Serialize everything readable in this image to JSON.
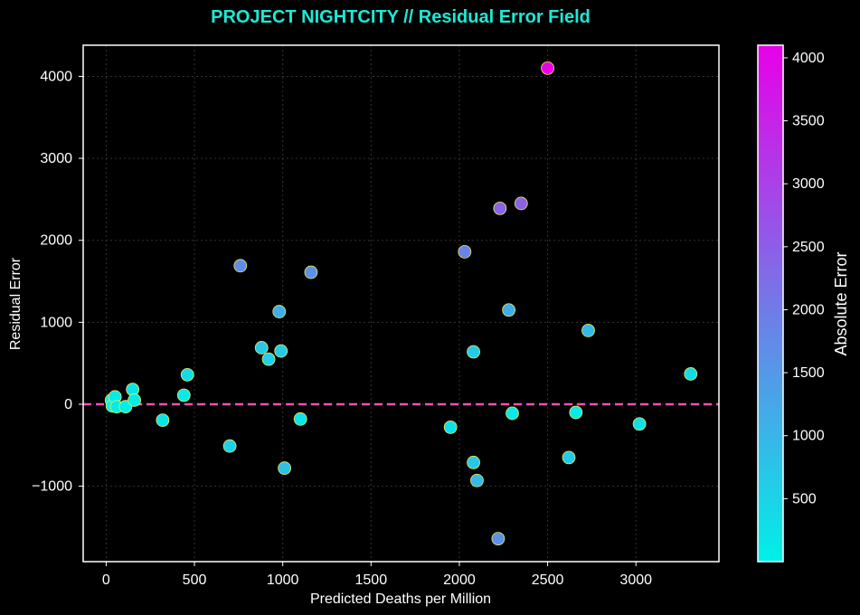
{
  "chart_data": {
    "type": "scatter",
    "title": "PROJECT NIGHTCITY // Residual Error Field",
    "xlabel": "Predicted Deaths per Million",
    "ylabel": "Residual Error",
    "xlim": [
      -130,
      3470
    ],
    "ylim": [
      -1920,
      4380
    ],
    "xticks": [
      0,
      500,
      1000,
      1500,
      2000,
      2500,
      3000
    ],
    "yticks": [
      -1000,
      0,
      1000,
      2000,
      3000,
      4000
    ],
    "ytick_labels": [
      "−1000",
      "0",
      "1000",
      "2000",
      "3000",
      "4000"
    ],
    "grid": true,
    "zero_line": {
      "y": 0,
      "color": "#ff4fb0",
      "style": "dashed"
    },
    "colorbar": {
      "label": "Absolute Error",
      "range": [
        0,
        4100
      ],
      "ticks": [
        500,
        1000,
        1500,
        2000,
        2500,
        3000,
        3500,
        4000
      ],
      "colormap": [
        "#00f0e8",
        "#e800e8"
      ]
    },
    "points": [
      {
        "x": 30,
        "y": 50
      },
      {
        "x": 35,
        "y": -20
      },
      {
        "x": 50,
        "y": 90
      },
      {
        "x": 60,
        "y": -30
      },
      {
        "x": 110,
        "y": -30
      },
      {
        "x": 150,
        "y": 180
      },
      {
        "x": 160,
        "y": 50
      },
      {
        "x": 320,
        "y": -195
      },
      {
        "x": 440,
        "y": 110
      },
      {
        "x": 460,
        "y": 360
      },
      {
        "x": 700,
        "y": -510
      },
      {
        "x": 760,
        "y": 1690
      },
      {
        "x": 880,
        "y": 690
      },
      {
        "x": 920,
        "y": 550
      },
      {
        "x": 980,
        "y": 1130
      },
      {
        "x": 990,
        "y": 650
      },
      {
        "x": 1010,
        "y": -780
      },
      {
        "x": 1100,
        "y": -180
      },
      {
        "x": 1160,
        "y": 1610
      },
      {
        "x": 1950,
        "y": -280
      },
      {
        "x": 2030,
        "y": 1860
      },
      {
        "x": 2080,
        "y": 640
      },
      {
        "x": 2080,
        "y": -710
      },
      {
        "x": 2100,
        "y": -930
      },
      {
        "x": 2220,
        "y": -1640
      },
      {
        "x": 2230,
        "y": 2390
      },
      {
        "x": 2280,
        "y": 1150
      },
      {
        "x": 2300,
        "y": -110
      },
      {
        "x": 2350,
        "y": 2450
      },
      {
        "x": 2500,
        "y": 4100
      },
      {
        "x": 2620,
        "y": -650
      },
      {
        "x": 2660,
        "y": -100
      },
      {
        "x": 2730,
        "y": 900
      },
      {
        "x": 3020,
        "y": -240
      },
      {
        "x": 3310,
        "y": 370
      }
    ]
  }
}
